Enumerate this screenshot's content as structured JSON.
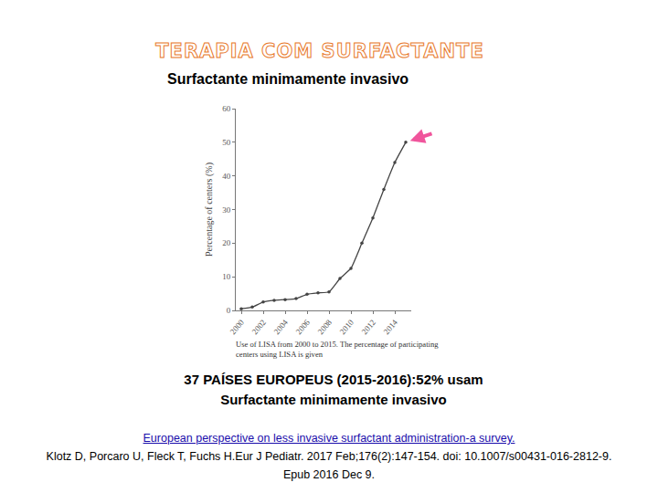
{
  "slide": {
    "title": "TERAPIA COM SURFACTANTE",
    "subtitle": "Surfactante minimamente invasivo"
  },
  "chart_data": {
    "type": "line",
    "x": [
      2000,
      2001,
      2002,
      2003,
      2004,
      2005,
      2006,
      2007,
      2008,
      2009,
      2010,
      2011,
      2012,
      2013,
      2014,
      2015
    ],
    "values": [
      0.5,
      1,
      2.5,
      3,
      3.2,
      3.5,
      4.8,
      5.2,
      5.5,
      9.5,
      12.5,
      20,
      27.5,
      36,
      44,
      50
    ],
    "ylabel": "Percentage of centers (%)",
    "xlim": [
      1999.5,
      2015.5
    ],
    "xticks": [
      2000,
      2002,
      2004,
      2006,
      2008,
      2010,
      2012,
      2014
    ],
    "ylim": [
      0,
      60
    ],
    "yticks": [
      0,
      10,
      20,
      30,
      40,
      50,
      60
    ],
    "grid": false,
    "color": "#444444",
    "marker": "circle",
    "line_style": "solid",
    "caption": [
      "Use of LISA from 2000 to 2015. The percentage of participating",
      "centers using LISA is given"
    ]
  },
  "summary": [
    "37 PAÍSES EUROPEUS (2015-2016):52% usam",
    "Surfactante minimamente invasivo"
  ],
  "reference": {
    "link": "European perspective on less invasive surfactant administration-a survey.",
    "lines": [
      "Klotz D, Porcaro U, Fleck T, Fuchs H.Eur J Pediatr. 2017 Feb;176(2):147-154. doi: 10.1007/s00431-016-2812-9.",
      "Epub 2016 Dec 9."
    ]
  }
}
